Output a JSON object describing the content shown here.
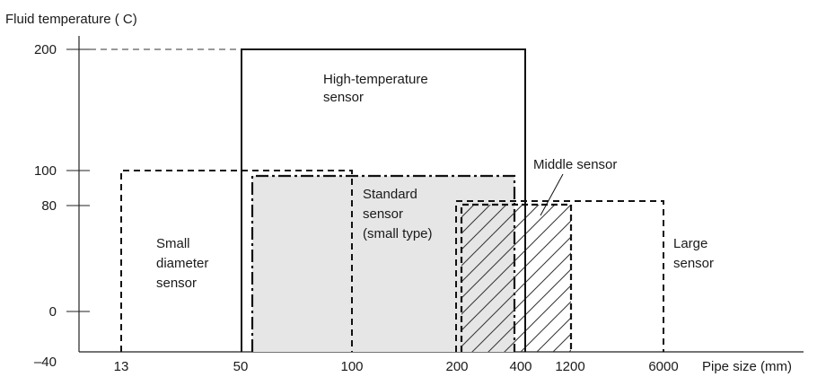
{
  "chart_data": {
    "type": "range-diagram",
    "ylabel": "Fluid temperature (  C)",
    "xlabel": "Pipe size (mm)",
    "y_ticks": [
      "200",
      "100",
      "80",
      "0",
      "–40"
    ],
    "x_ticks": [
      "13",
      "50",
      "100",
      "200",
      "400",
      "1200",
      "6000"
    ],
    "regions": [
      {
        "id": "high-temp",
        "label_lines": [
          "High-temperature",
          "sensor"
        ],
        "pipe_from": "50",
        "pipe_to": "400",
        "temp_min": "-40",
        "temp_max": "200",
        "line_style": "solid"
      },
      {
        "id": "small-diameter",
        "label_lines": [
          "Small",
          "diameter",
          "sensor"
        ],
        "pipe_from": "13",
        "pipe_to": "100",
        "temp_min": "-40",
        "temp_max": "100",
        "line_style": "dashed"
      },
      {
        "id": "standard",
        "label_lines": [
          "Standard",
          "sensor",
          "(small type)"
        ],
        "pipe_from": "50",
        "pipe_to": "400",
        "temp_min": "-40",
        "temp_max": "100",
        "line_style": "dash-dot",
        "fill": "#e6e6e6"
      },
      {
        "id": "middle",
        "label_lines": [
          "Middle sensor"
        ],
        "pipe_from": "200",
        "pipe_to": "1200",
        "temp_min": "-40",
        "temp_max": "80",
        "line_style": "dashed",
        "fill": "hatched"
      },
      {
        "id": "large",
        "label_lines": [
          "Large",
          "sensor"
        ],
        "pipe_from": "200",
        "pipe_to": "6000",
        "temp_min": "-40",
        "temp_max": "80",
        "line_style": "dashed"
      }
    ]
  }
}
